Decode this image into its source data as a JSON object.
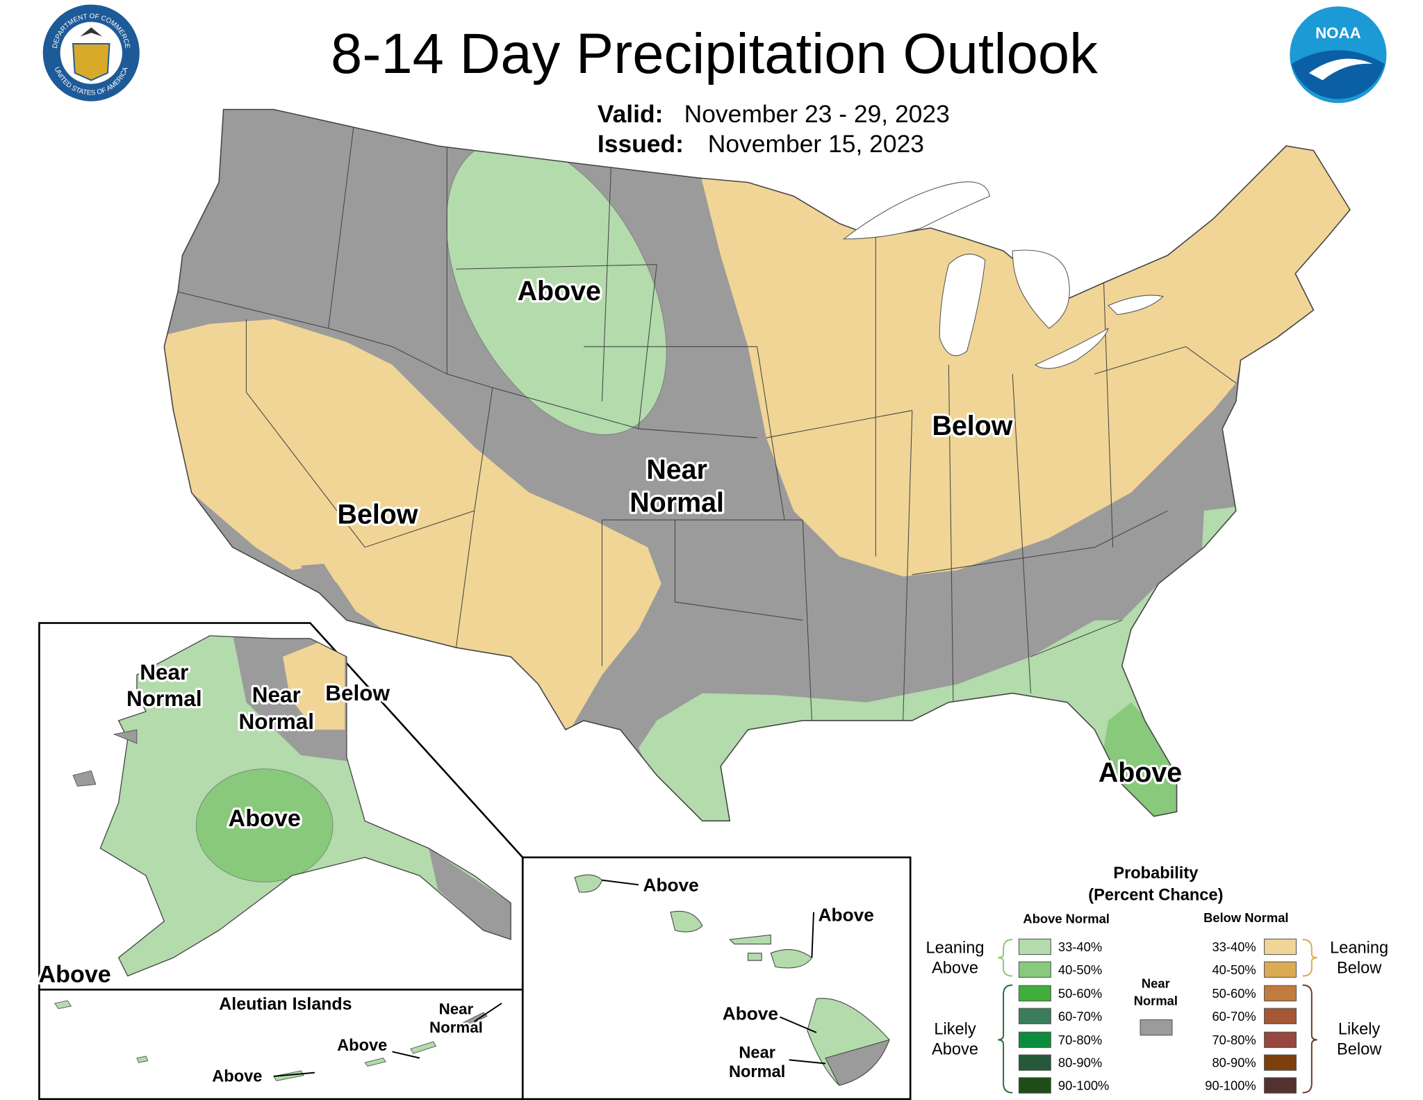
{
  "header": {
    "title": "8-14 Day Precipitation Outlook",
    "valid_label": "Valid:",
    "valid_dates": "November 23 - 29, 2023",
    "issued_label": "Issued:",
    "issued_date": "November 15, 2023",
    "doc_seal_top": "DEPARTMENT OF COMMERCE",
    "doc_seal_bottom": "UNITED STATES OF AMERICA",
    "noaa_logo": "NOAA"
  },
  "map": {
    "conus": [
      {
        "lines": [
          "Above"
        ]
      },
      {
        "lines": [
          "Near",
          "Normal"
        ]
      },
      {
        "lines": [
          "Below"
        ]
      },
      {
        "lines": [
          "Below"
        ]
      },
      {
        "lines": [
          "Above"
        ]
      }
    ],
    "alaska": [
      {
        "lines": [
          "Near",
          "Normal"
        ]
      },
      {
        "lines": [
          "Near",
          "Normal"
        ]
      },
      {
        "lines": [
          "Below"
        ]
      },
      {
        "lines": [
          "Above"
        ]
      },
      {
        "lines": [
          "Above"
        ]
      }
    ],
    "aleutian_title": "Aleutian Islands",
    "aleutian": [
      {
        "lines": [
          "Near",
          "Normal"
        ]
      },
      {
        "lines": [
          "Above"
        ]
      },
      {
        "lines": [
          "Above"
        ]
      }
    ],
    "hawaii": [
      {
        "lines": [
          "Above"
        ]
      },
      {
        "lines": [
          "Above"
        ]
      },
      {
        "lines": [
          "Above"
        ]
      },
      {
        "lines": [
          "Near",
          "Normal"
        ]
      }
    ]
  },
  "legend": {
    "title": [
      "Probability",
      "(Percent Chance)"
    ],
    "above_normal": {
      "heading": "Above Normal",
      "leaning": [
        "Leaning",
        "Above"
      ],
      "likely": [
        "Likely",
        "Above"
      ],
      "items": [
        {
          "label": "33-40%",
          "color": "#b3dbac"
        },
        {
          "label": "40-50%",
          "color": "#88c97c"
        },
        {
          "label": "50-60%",
          "color": "#3fae3a"
        },
        {
          "label": "60-70%",
          "color": "#3a7d5b"
        },
        {
          "label": "70-80%",
          "color": "#0c8d3e"
        },
        {
          "label": "80-90%",
          "color": "#245a39"
        },
        {
          "label": "90-100%",
          "color": "#1e4d17"
        }
      ]
    },
    "near_normal": {
      "label": [
        "Near",
        "Normal"
      ],
      "color": "#9b9b9b"
    },
    "below_normal": {
      "heading": "Below Normal",
      "leaning": [
        "Leaning",
        "Below"
      ],
      "likely": [
        "Likely",
        "Below"
      ],
      "items": [
        {
          "label": "33-40%",
          "color": "#f0d596"
        },
        {
          "label": "40-50%",
          "color": "#dbaa55"
        },
        {
          "label": "50-60%",
          "color": "#c27b3f"
        },
        {
          "label": "60-70%",
          "color": "#a45834"
        },
        {
          "label": "70-80%",
          "color": "#97473d"
        },
        {
          "label": "80-90%",
          "color": "#7c3f0d"
        },
        {
          "label": "90-100%",
          "color": "#54322f"
        }
      ]
    }
  }
}
